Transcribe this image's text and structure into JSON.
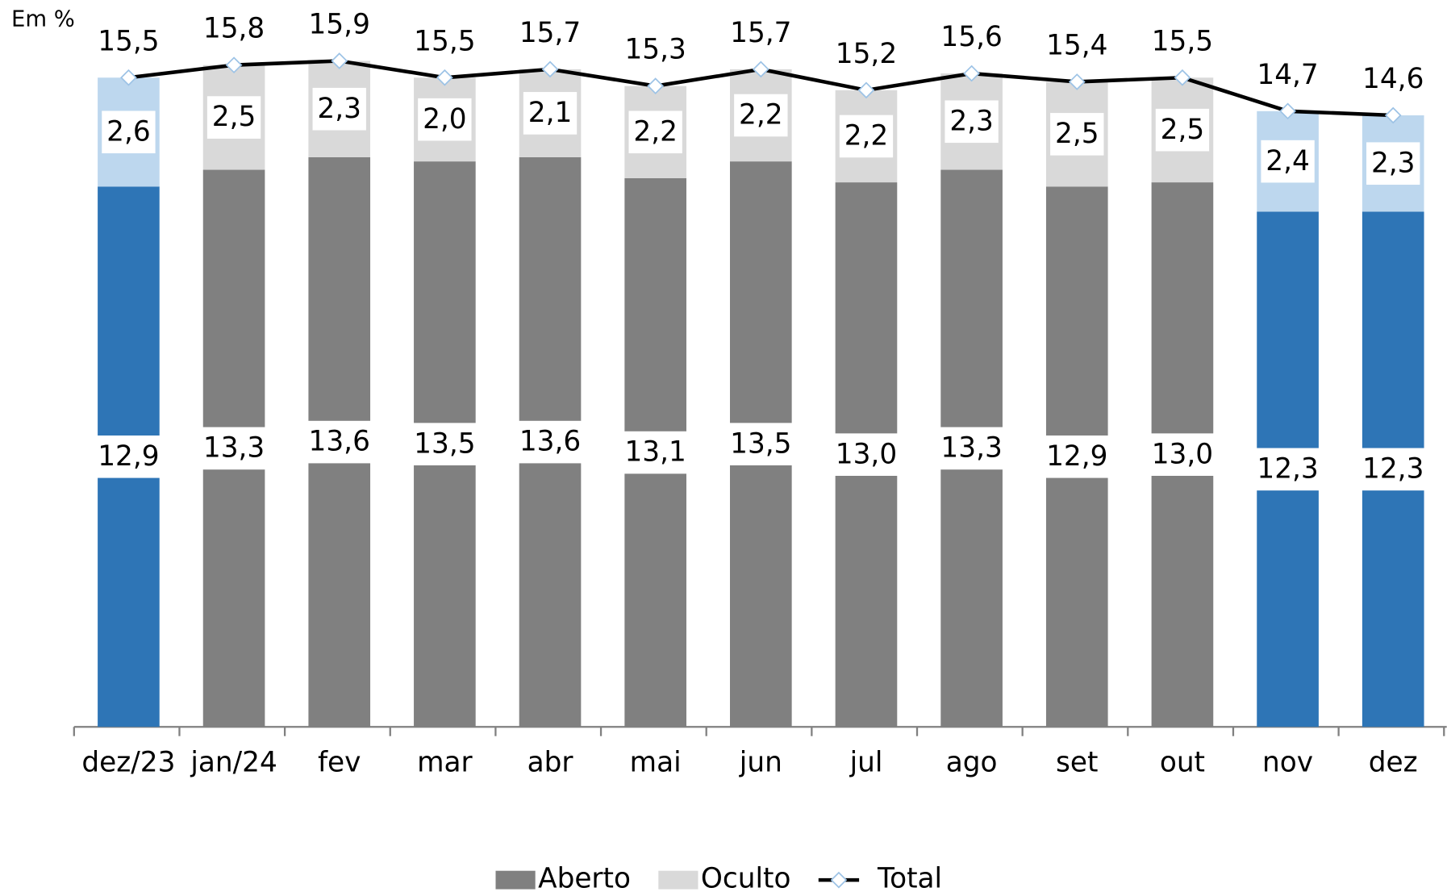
{
  "chart_data": {
    "type": "stacked-bar-line",
    "ylabel": "Em %",
    "categories": [
      "dez/23",
      "jan/24",
      "fev",
      "mar",
      "abr",
      "mai",
      "jun",
      "jul",
      "ago",
      "set",
      "out",
      "nov",
      "dez"
    ],
    "ylim": [
      0,
      16
    ],
    "series": [
      {
        "name": "Aberto",
        "type": "bar",
        "color": "#808080",
        "colors": [
          "#2e75b6",
          "#808080",
          "#808080",
          "#808080",
          "#808080",
          "#808080",
          "#808080",
          "#808080",
          "#808080",
          "#808080",
          "#808080",
          "#2e75b6",
          "#2e75b6"
        ],
        "values": [
          12.9,
          13.3,
          13.6,
          13.5,
          13.6,
          13.1,
          13.5,
          13.0,
          13.3,
          12.9,
          13.0,
          12.3,
          12.3
        ],
        "value_labels": [
          "12,9",
          "13,3",
          "13,6",
          "13,5",
          "13,6",
          "13,1",
          "13,5",
          "13,0",
          "13,3",
          "12,9",
          "13,0",
          "12,3",
          "12,3"
        ]
      },
      {
        "name": "Oculto",
        "type": "bar",
        "color": "#d9d9d9",
        "colors": [
          "#bdd7ee",
          "#d9d9d9",
          "#d9d9d9",
          "#d9d9d9",
          "#d9d9d9",
          "#d9d9d9",
          "#d9d9d9",
          "#d9d9d9",
          "#d9d9d9",
          "#d9d9d9",
          "#d9d9d9",
          "#bdd7ee",
          "#bdd7ee"
        ],
        "values": [
          2.6,
          2.5,
          2.3,
          2.0,
          2.1,
          2.2,
          2.2,
          2.2,
          2.3,
          2.5,
          2.5,
          2.4,
          2.3
        ],
        "value_labels": [
          "2,6",
          "2,5",
          "2,3",
          "2,0",
          "2,1",
          "2,2",
          "2,2",
          "2,2",
          "2,3",
          "2,5",
          "2,5",
          "2,4",
          "2,3"
        ]
      },
      {
        "name": "Total",
        "type": "line",
        "color": "#000000",
        "marker_color": "#9dc3e6",
        "values": [
          15.5,
          15.8,
          15.9,
          15.5,
          15.7,
          15.3,
          15.7,
          15.2,
          15.6,
          15.4,
          15.5,
          14.7,
          14.6
        ],
        "value_labels": [
          "15,5",
          "15,8",
          "15,9",
          "15,5",
          "15,7",
          "15,3",
          "15,7",
          "15,2",
          "15,6",
          "15,4",
          "15,5",
          "14,7",
          "14,6"
        ]
      }
    ]
  }
}
